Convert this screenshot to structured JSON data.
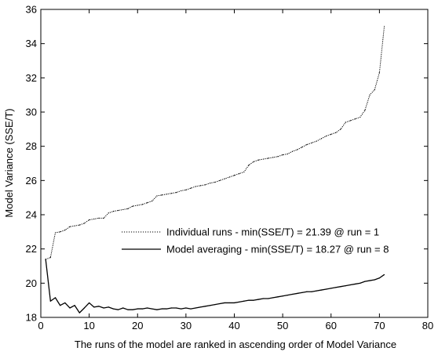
{
  "chart_data": {
    "type": "line",
    "title": "",
    "xlabel": "The runs of the model are ranked in ascending order of Model Variance",
    "ylabel": "Model Variance (SSE/T)",
    "xlim": [
      0,
      80
    ],
    "ylim": [
      18,
      36
    ],
    "xticks": [
      0,
      10,
      20,
      30,
      40,
      50,
      60,
      70,
      80
    ],
    "yticks": [
      18,
      20,
      22,
      24,
      26,
      28,
      30,
      32,
      34,
      36
    ],
    "grid": false,
    "legend_position": "center-right",
    "series": [
      {
        "name": "Individual runs - min(SSE/T) = 21.39 @ run = 1",
        "style": "dotted",
        "x": [
          1,
          2,
          3,
          4,
          5,
          6,
          7,
          8,
          9,
          10,
          11,
          12,
          13,
          14,
          15,
          16,
          17,
          18,
          19,
          20,
          21,
          22,
          23,
          24,
          25,
          26,
          27,
          28,
          29,
          30,
          31,
          32,
          33,
          34,
          35,
          36,
          37,
          38,
          39,
          40,
          41,
          42,
          43,
          44,
          45,
          46,
          47,
          48,
          49,
          50,
          51,
          52,
          53,
          54,
          55,
          56,
          57,
          58,
          59,
          60,
          61,
          62,
          63,
          64,
          65,
          66,
          67,
          68,
          69,
          70,
          71
        ],
        "values": [
          21.39,
          21.5,
          22.95,
          23.0,
          23.1,
          23.3,
          23.35,
          23.4,
          23.5,
          23.7,
          23.75,
          23.8,
          23.8,
          24.1,
          24.2,
          24.25,
          24.3,
          24.35,
          24.5,
          24.55,
          24.6,
          24.7,
          24.8,
          25.1,
          25.15,
          25.2,
          25.25,
          25.3,
          25.4,
          25.45,
          25.55,
          25.65,
          25.7,
          25.75,
          25.85,
          25.9,
          26.0,
          26.1,
          26.2,
          26.3,
          26.4,
          26.5,
          26.9,
          27.1,
          27.2,
          27.25,
          27.3,
          27.35,
          27.4,
          27.5,
          27.55,
          27.7,
          27.8,
          27.95,
          28.1,
          28.2,
          28.3,
          28.45,
          28.6,
          28.7,
          28.8,
          29.0,
          29.4,
          29.5,
          29.6,
          29.7,
          30.1,
          31.0,
          31.3,
          32.3,
          35.0
        ]
      },
      {
        "name": "Model averaging - min(SSE/T) = 18.27 @ run = 8",
        "style": "solid",
        "x": [
          1,
          2,
          3,
          4,
          5,
          6,
          7,
          8,
          9,
          10,
          11,
          12,
          13,
          14,
          15,
          16,
          17,
          18,
          19,
          20,
          21,
          22,
          23,
          24,
          25,
          26,
          27,
          28,
          29,
          30,
          31,
          32,
          33,
          34,
          35,
          36,
          37,
          38,
          39,
          40,
          41,
          42,
          43,
          44,
          45,
          46,
          47,
          48,
          49,
          50,
          51,
          52,
          53,
          54,
          55,
          56,
          57,
          58,
          59,
          60,
          61,
          62,
          63,
          64,
          65,
          66,
          67,
          68,
          69,
          70,
          71
        ],
        "values": [
          21.4,
          18.95,
          19.15,
          18.7,
          18.85,
          18.55,
          18.7,
          18.27,
          18.55,
          18.85,
          18.6,
          18.65,
          18.55,
          18.6,
          18.5,
          18.45,
          18.55,
          18.45,
          18.45,
          18.5,
          18.5,
          18.55,
          18.5,
          18.45,
          18.5,
          18.5,
          18.55,
          18.55,
          18.5,
          18.55,
          18.5,
          18.55,
          18.6,
          18.65,
          18.7,
          18.75,
          18.8,
          18.85,
          18.85,
          18.85,
          18.9,
          18.95,
          19.0,
          19.0,
          19.05,
          19.1,
          19.1,
          19.15,
          19.2,
          19.25,
          19.3,
          19.35,
          19.4,
          19.45,
          19.5,
          19.5,
          19.55,
          19.6,
          19.65,
          19.7,
          19.75,
          19.8,
          19.85,
          19.9,
          19.95,
          20.0,
          20.1,
          20.15,
          20.2,
          20.3,
          20.5
        ]
      }
    ]
  }
}
